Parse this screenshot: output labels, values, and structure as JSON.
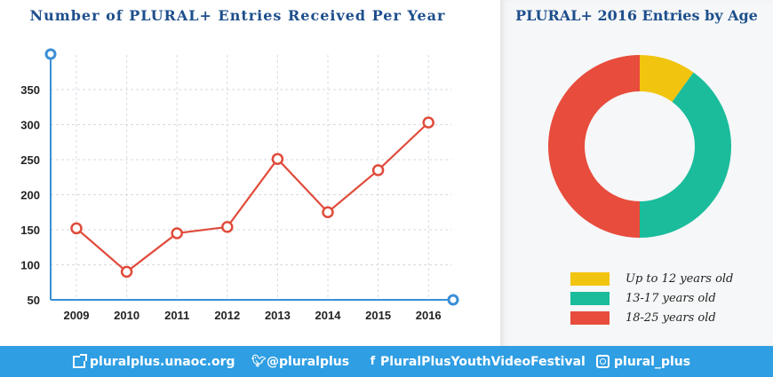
{
  "chart_data": [
    {
      "type": "line",
      "title": "Number of PLURAL+ Entries Received Per Year",
      "categories": [
        "2009",
        "2010",
        "2011",
        "2012",
        "2013",
        "2014",
        "2015",
        "2016"
      ],
      "values": [
        152,
        90,
        145,
        154,
        251,
        175,
        235,
        303
      ],
      "ylim": [
        50,
        370
      ],
      "yticks": [
        "50",
        "100",
        "150",
        "200",
        "250",
        "300",
        "350"
      ],
      "grid": true,
      "colors": {
        "line": "#e04b3b",
        "axis": "#3b8fd6",
        "point_fill": "#ffffff"
      }
    },
    {
      "type": "pie",
      "variant": "donut",
      "title": "PLURAL+ 2016 Entries by Age",
      "categories": [
        "Up to 12 years old",
        "13-17 years old",
        "18-25 years old"
      ],
      "values": [
        10,
        40,
        50
      ],
      "colors": [
        "#f1c40f",
        "#1abc9c",
        "#e74c3c"
      ],
      "legend": "bottom"
    }
  ],
  "footer": {
    "website": "pluralplus.unaoc.org",
    "twitter": "@pluralplus",
    "facebook": "PluralPlusYouthVideoFestival",
    "instagram": "plural_plus"
  },
  "icons": [
    "external-link-icon",
    "twitter-icon",
    "facebook-icon",
    "instagram-icon"
  ]
}
